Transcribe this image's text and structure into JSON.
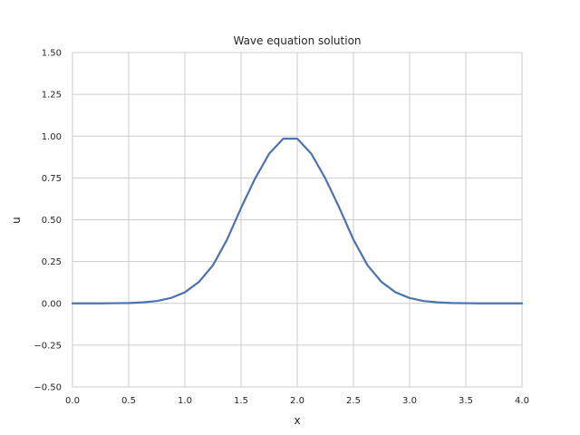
{
  "chart_data": {
    "type": "line",
    "title": "Wave equation solution",
    "xlabel": "x",
    "ylabel": "u",
    "xlim": [
      0.0,
      4.0
    ],
    "ylim": [
      -0.5,
      1.5
    ],
    "xticks": [
      "0.0",
      "0.5",
      "1.0",
      "1.5",
      "2.0",
      "2.5",
      "3.0",
      "3.5",
      "4.0"
    ],
    "yticks": [
      "−0.50",
      "−0.25",
      "0.00",
      "0.25",
      "0.50",
      "0.75",
      "1.00",
      "1.25",
      "1.50"
    ],
    "grid": true,
    "line_color": "#4c72b0",
    "grid_color": "#cccccc",
    "series": [
      {
        "x": [
          0.0,
          0.125,
          0.25,
          0.375,
          0.5,
          0.625,
          0.75,
          0.875,
          1.0,
          1.125,
          1.25,
          1.375,
          1.5,
          1.625,
          1.75,
          1.875,
          2.0,
          2.125,
          2.25,
          2.375,
          2.5,
          2.625,
          2.75,
          2.875,
          3.0,
          3.125,
          3.25,
          3.375,
          3.5,
          3.625,
          3.75,
          3.875,
          4.0
        ],
        "values": [
          0.0,
          0.0,
          0.0,
          0.001,
          0.002,
          0.006,
          0.014,
          0.032,
          0.066,
          0.128,
          0.228,
          0.381,
          0.571,
          0.747,
          0.895,
          0.985,
          0.985,
          0.895,
          0.747,
          0.571,
          0.381,
          0.228,
          0.128,
          0.066,
          0.032,
          0.014,
          0.006,
          0.002,
          0.001,
          0.0,
          0.0,
          0.0,
          0.0
        ]
      }
    ]
  }
}
